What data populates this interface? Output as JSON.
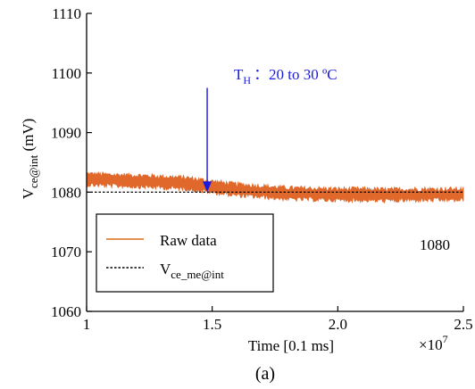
{
  "chart_data": {
    "type": "line",
    "xlabel": "Time [0.1 ms]",
    "x_multiplier": "×10",
    "x_multiplier_exp": "7",
    "ylabel_main": "V",
    "ylabel_sub": "ce@int",
    "ylabel_unit": " (mV)",
    "xlim": [
      1,
      2.5
    ],
    "ylim": [
      1060,
      1110
    ],
    "x_ticks": [
      1,
      1.5,
      2,
      2.5
    ],
    "x_tick_labels": [
      "1",
      "1.5",
      "2.0",
      "2.5"
    ],
    "y_ticks": [
      1060,
      1070,
      1080,
      1090,
      1100,
      1110
    ],
    "y_tick_labels": [
      "1060",
      "1070",
      "1080",
      "1090",
      "1100",
      "1110"
    ],
    "grid": false,
    "series": [
      {
        "name": "Raw data",
        "color": "#e06020",
        "style": "solid",
        "x": [
          1.0,
          1.1,
          1.2,
          1.3,
          1.4,
          1.5,
          1.6,
          1.7,
          1.8,
          1.9,
          2.0,
          2.1,
          2.2,
          2.3,
          2.4,
          2.5
        ],
        "values": [
          1082.2,
          1082.0,
          1081.9,
          1081.7,
          1081.5,
          1080.9,
          1080.4,
          1080.1,
          1079.8,
          1079.7,
          1079.6,
          1079.6,
          1079.5,
          1079.6,
          1079.6,
          1079.6
        ],
        "band": 2.2
      },
      {
        "name_main": "V",
        "name_sub": "ce_me@int",
        "color": "#000000",
        "style": "dashed",
        "x": [
          1.0,
          2.5
        ],
        "values": [
          1080,
          1080
        ]
      }
    ],
    "legend": {
      "placement": "bottom-left"
    },
    "annotation_label_main": "T",
    "annotation_label_sub": "H",
    "annotation_label_rest": "：20 to 30 ºC",
    "annotation_color": "#1a1adf",
    "annotation_arrow": {
      "x": 1.48,
      "y_start": 1097.5,
      "y_end": 1080
    },
    "corner_value_label": "1080",
    "caption": "(a)"
  }
}
